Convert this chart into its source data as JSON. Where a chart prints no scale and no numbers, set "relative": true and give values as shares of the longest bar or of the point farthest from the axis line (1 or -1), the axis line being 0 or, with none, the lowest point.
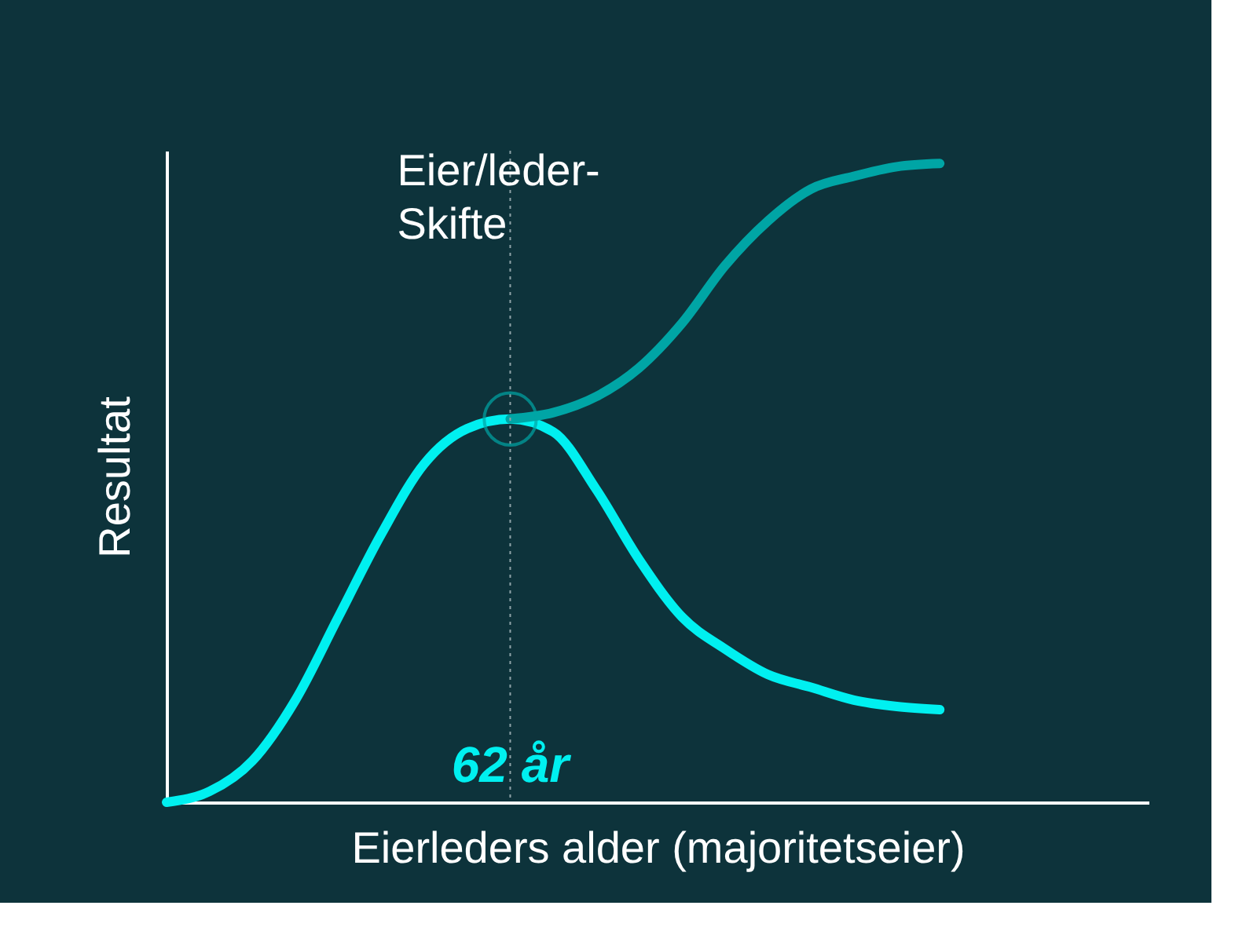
{
  "chart_data": {
    "type": "line",
    "relative": true,
    "xlabel": "Eierleders alder (majoritetseier)",
    "ylabel": "Resultat",
    "categories": [
      null,
      null,
      null,
      null,
      null,
      null,
      null,
      null,
      null,
      null,
      null,
      null,
      null,
      null,
      null,
      null,
      null,
      null,
      null
    ],
    "series": [
      {
        "color": "#00f0f0",
        "values": [
          0,
          0.017,
          0.065,
          0.16,
          0.29,
          0.42,
          0.53,
          0.585,
          0.6,
          0.58,
          0.49,
          0.38,
          0.29,
          0.24,
          0.2,
          0.18,
          0.16,
          0.15,
          0.145
        ]
      },
      {
        "color": "#00a5a5",
        "values": [
          null,
          null,
          null,
          null,
          null,
          null,
          null,
          null,
          0.6,
          0.61,
          0.635,
          0.68,
          0.75,
          0.84,
          0.91,
          0.96,
          0.98,
          0.995,
          1
        ]
      }
    ],
    "annotations": [
      "Eier/leder-Skifte",
      "62 år"
    ],
    "grid": false,
    "tick_labels": false,
    "marker": "none",
    "line_style": "solid"
  }
}
